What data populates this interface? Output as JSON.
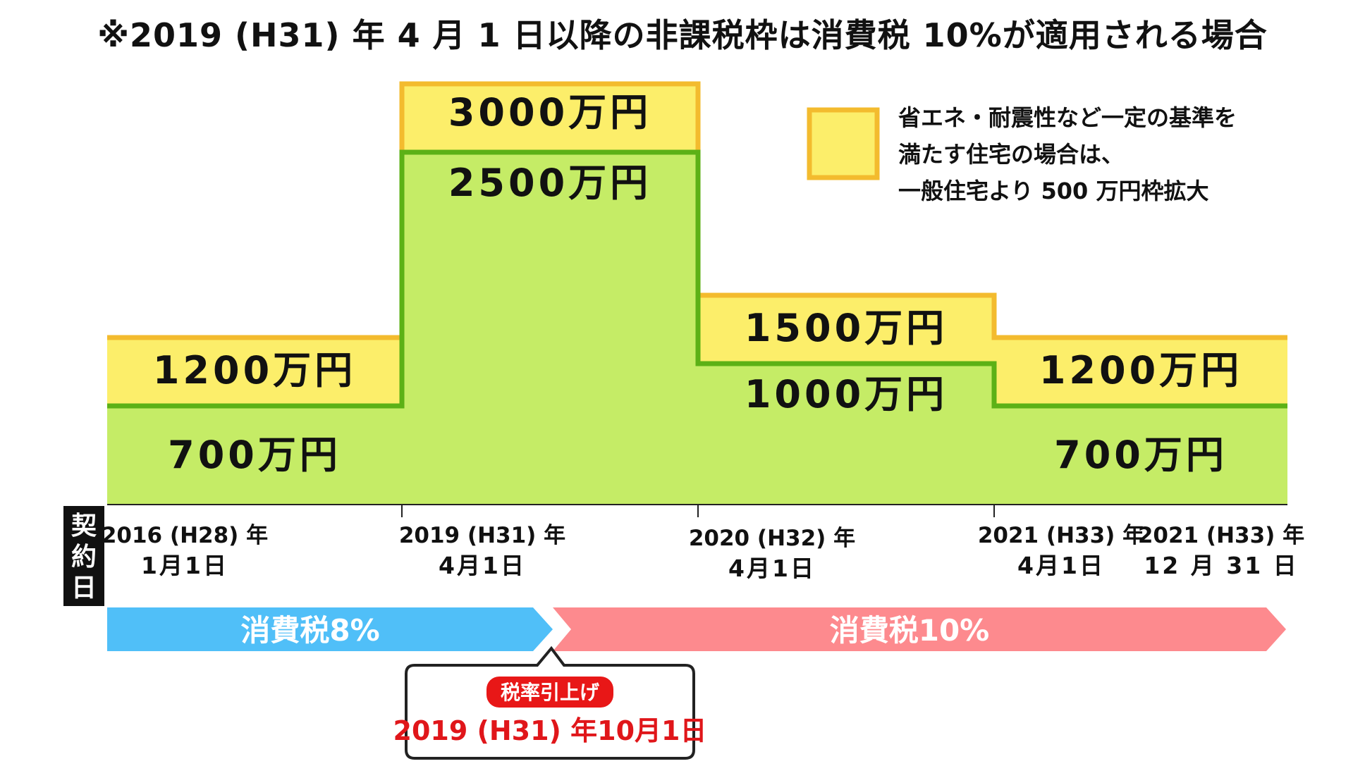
{
  "title": "※2019 (H31) 年 4 月 1 日以降の非課税枠は消費税 10%が適用される場合",
  "chart_data": {
    "type": "area",
    "periods": [
      {
        "label_line1": "2016 (H28) 年",
        "label_line2": "1月1日",
        "general": 700,
        "eco": 1200,
        "general_label": "700万円",
        "eco_label": "1200万円"
      },
      {
        "label_line1": "2019 (H31) 年",
        "label_line2": "4月1日",
        "general": 2500,
        "eco": 3000,
        "general_label": "2500万円",
        "eco_label": "3000万円"
      },
      {
        "label_line1": "2020 (H32) 年",
        "label_line2": "4月1日",
        "general": 1000,
        "eco": 1500,
        "general_label": "1000万円",
        "eco_label": "1500万円"
      },
      {
        "label_line1": "2021 (H33) 年",
        "label_line2": "4月1日",
        "general": 700,
        "eco": 1200,
        "general_label": "700万円",
        "eco_label": "1200万円"
      }
    ],
    "end_date": {
      "label_line1": "2021 (H33)  年",
      "label_line2": "12 月 31 日"
    },
    "axis_label": "契約日",
    "legend": {
      "lines": [
        "省エネ・耐震性など一定の基準を",
        "満たす住宅の場合は、",
        "一般住宅より 500 万円枠拡大"
      ],
      "position": "top-right"
    },
    "tax_bands": [
      {
        "label": "消費税8%",
        "color": "#50bff8"
      },
      {
        "label": "消費税10%",
        "color": "#fd8a8e"
      }
    ],
    "callout": {
      "badge": "税率引上げ",
      "date": "2019 (H31) 年10月1日"
    },
    "colors": {
      "general_fill": "#c5ec66",
      "general_stroke": "#5cb116",
      "eco_fill": "#fcee6a",
      "eco_stroke": "#f3bb2e",
      "badge": "#e81717",
      "callout_text": "#e0161a"
    }
  }
}
